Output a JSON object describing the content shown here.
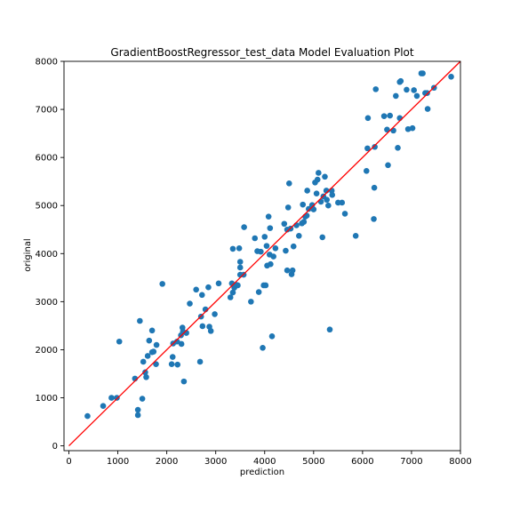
{
  "chart_data": {
    "type": "scatter",
    "title": "GradientBoostRegressor_test_data Model Evaluation Plot",
    "xlabel": "prediction",
    "ylabel": "original",
    "xlim": [
      -100,
      8000
    ],
    "ylim": [
      -100,
      8000
    ],
    "xticks": [
      0,
      1000,
      2000,
      3000,
      4000,
      5000,
      6000,
      7000,
      8000
    ],
    "yticks": [
      0,
      1000,
      2000,
      3000,
      4000,
      5000,
      6000,
      7000,
      8000
    ],
    "grid": false,
    "point_color": "#1f77b4",
    "reference_line": {
      "from": [
        0,
        0
      ],
      "to": [
        8000,
        8000
      ],
      "color": "#ff0000"
    },
    "points": [
      [
        380,
        620
      ],
      [
        700,
        830
      ],
      [
        870,
        1000
      ],
      [
        980,
        1000
      ],
      [
        1030,
        2170
      ],
      [
        1350,
        1400
      ],
      [
        1410,
        750
      ],
      [
        1410,
        640
      ],
      [
        1450,
        2600
      ],
      [
        1500,
        980
      ],
      [
        1520,
        1750
      ],
      [
        1560,
        1530
      ],
      [
        1580,
        1430
      ],
      [
        1610,
        1870
      ],
      [
        1640,
        2190
      ],
      [
        1700,
        1950
      ],
      [
        1700,
        2400
      ],
      [
        1730,
        1960
      ],
      [
        1780,
        1700
      ],
      [
        1790,
        2100
      ],
      [
        1910,
        3370
      ],
      [
        2100,
        1700
      ],
      [
        2120,
        1850
      ],
      [
        2130,
        2130
      ],
      [
        2210,
        2170
      ],
      [
        2220,
        1690
      ],
      [
        2290,
        2300
      ],
      [
        2300,
        2120
      ],
      [
        2320,
        2460
      ],
      [
        2330,
        2380
      ],
      [
        2350,
        1340
      ],
      [
        2400,
        2350
      ],
      [
        2470,
        2960
      ],
      [
        2600,
        3250
      ],
      [
        2680,
        1750
      ],
      [
        2700,
        2690
      ],
      [
        2720,
        3140
      ],
      [
        2730,
        2490
      ],
      [
        2790,
        2840
      ],
      [
        2850,
        3300
      ],
      [
        2870,
        2480
      ],
      [
        2900,
        2390
      ],
      [
        2980,
        2740
      ],
      [
        3060,
        3380
      ],
      [
        3300,
        3090
      ],
      [
        3330,
        3380
      ],
      [
        3350,
        3190
      ],
      [
        3350,
        4100
      ],
      [
        3380,
        3290
      ],
      [
        3420,
        3350
      ],
      [
        3450,
        3340
      ],
      [
        3480,
        4110
      ],
      [
        3500,
        3560
      ],
      [
        3500,
        3710
      ],
      [
        3500,
        3830
      ],
      [
        3570,
        3560
      ],
      [
        3580,
        4550
      ],
      [
        3720,
        3000
      ],
      [
        3800,
        4320
      ],
      [
        3850,
        4050
      ],
      [
        3880,
        3200
      ],
      [
        3920,
        4040
      ],
      [
        3960,
        2040
      ],
      [
        3980,
        3340
      ],
      [
        4000,
        4350
      ],
      [
        4020,
        3340
      ],
      [
        4040,
        4160
      ],
      [
        4050,
        3750
      ],
      [
        4080,
        4770
      ],
      [
        4100,
        3980
      ],
      [
        4110,
        4530
      ],
      [
        4120,
        3780
      ],
      [
        4150,
        2280
      ],
      [
        4180,
        3940
      ],
      [
        4220,
        4110
      ],
      [
        4400,
        4620
      ],
      [
        4430,
        4060
      ],
      [
        4460,
        4500
      ],
      [
        4460,
        3650
      ],
      [
        4480,
        4960
      ],
      [
        4500,
        5460
      ],
      [
        4530,
        4520
      ],
      [
        4550,
        3570
      ],
      [
        4570,
        3650
      ],
      [
        4590,
        4150
      ],
      [
        4650,
        4590
      ],
      [
        4700,
        4370
      ],
      [
        4760,
        4630
      ],
      [
        4780,
        5020
      ],
      [
        4800,
        4660
      ],
      [
        4830,
        4770
      ],
      [
        4860,
        4790
      ],
      [
        4870,
        5310
      ],
      [
        4900,
        4930
      ],
      [
        4970,
        5010
      ],
      [
        5000,
        4920
      ],
      [
        5030,
        5480
      ],
      [
        5060,
        5250
      ],
      [
        5080,
        5540
      ],
      [
        5100,
        5680
      ],
      [
        5150,
        5080
      ],
      [
        5180,
        4340
      ],
      [
        5200,
        5190
      ],
      [
        5230,
        5600
      ],
      [
        5260,
        5310
      ],
      [
        5270,
        5120
      ],
      [
        5300,
        5000
      ],
      [
        5330,
        2420
      ],
      [
        5370,
        5310
      ],
      [
        5380,
        5220
      ],
      [
        5500,
        5060
      ],
      [
        5580,
        5060
      ],
      [
        5640,
        4830
      ],
      [
        5860,
        4370
      ],
      [
        6080,
        5720
      ],
      [
        6100,
        6190
      ],
      [
        6110,
        6820
      ],
      [
        6230,
        4720
      ],
      [
        6240,
        5370
      ],
      [
        6250,
        6220
      ],
      [
        6270,
        7420
      ],
      [
        6440,
        6860
      ],
      [
        6500,
        6580
      ],
      [
        6520,
        5840
      ],
      [
        6560,
        6870
      ],
      [
        6630,
        6560
      ],
      [
        6680,
        7280
      ],
      [
        6720,
        6200
      ],
      [
        6760,
        6820
      ],
      [
        6760,
        7570
      ],
      [
        6780,
        7590
      ],
      [
        6900,
        7410
      ],
      [
        6930,
        6590
      ],
      [
        7020,
        6610
      ],
      [
        7050,
        7400
      ],
      [
        7110,
        7280
      ],
      [
        7200,
        7750
      ],
      [
        7230,
        7750
      ],
      [
        7280,
        7340
      ],
      [
        7320,
        7340
      ],
      [
        7330,
        7010
      ],
      [
        7460,
        7450
      ],
      [
        7810,
        7680
      ]
    ]
  }
}
